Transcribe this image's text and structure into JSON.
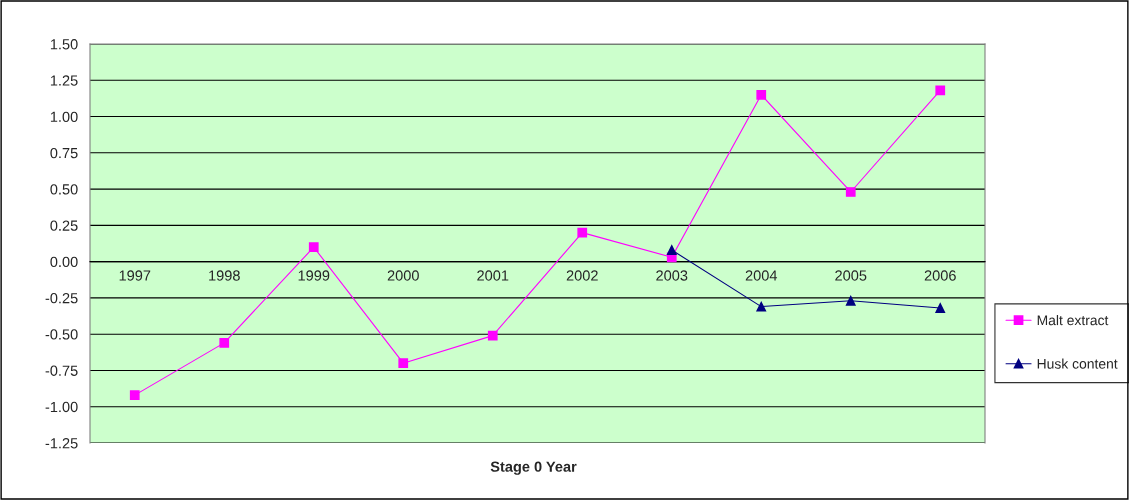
{
  "chart_data": {
    "type": "line",
    "xlabel": "Stage 0 Year",
    "categories": [
      "1997",
      "1998",
      "1999",
      "2000",
      "2001",
      "2002",
      "2003",
      "2004",
      "2005",
      "2006"
    ],
    "series": [
      {
        "name": "Malt extract",
        "color": "#ff00ff",
        "marker": "square",
        "values": [
          -0.92,
          -0.56,
          0.1,
          -0.7,
          -0.51,
          0.2,
          0.03,
          1.15,
          0.48,
          1.18
        ]
      },
      {
        "name": "Husk content",
        "color": "#000080",
        "marker": "triangle",
        "values": [
          null,
          null,
          null,
          null,
          null,
          null,
          0.08,
          -0.31,
          -0.27,
          -0.32
        ]
      }
    ],
    "ylim": [
      -1.25,
      1.5
    ],
    "yticks": [
      {
        "value": -1.25,
        "label": "-1.25"
      },
      {
        "value": -1.0,
        "label": "-1.00"
      },
      {
        "value": -0.75,
        "label": "-0.75"
      },
      {
        "value": -0.5,
        "label": "-0.50"
      },
      {
        "value": -0.25,
        "label": "-0.25"
      },
      {
        "value": 0.0,
        "label": "0.00"
      },
      {
        "value": 0.25,
        "label": "0.25"
      },
      {
        "value": 0.5,
        "label": "0.50"
      },
      {
        "value": 0.75,
        "label": "0.75"
      },
      {
        "value": 1.0,
        "label": "1.00"
      },
      {
        "value": 1.25,
        "label": "1.25"
      },
      {
        "value": 1.5,
        "label": "1.50"
      }
    ],
    "grid": "y",
    "legend": "right",
    "line_style": "solid"
  }
}
